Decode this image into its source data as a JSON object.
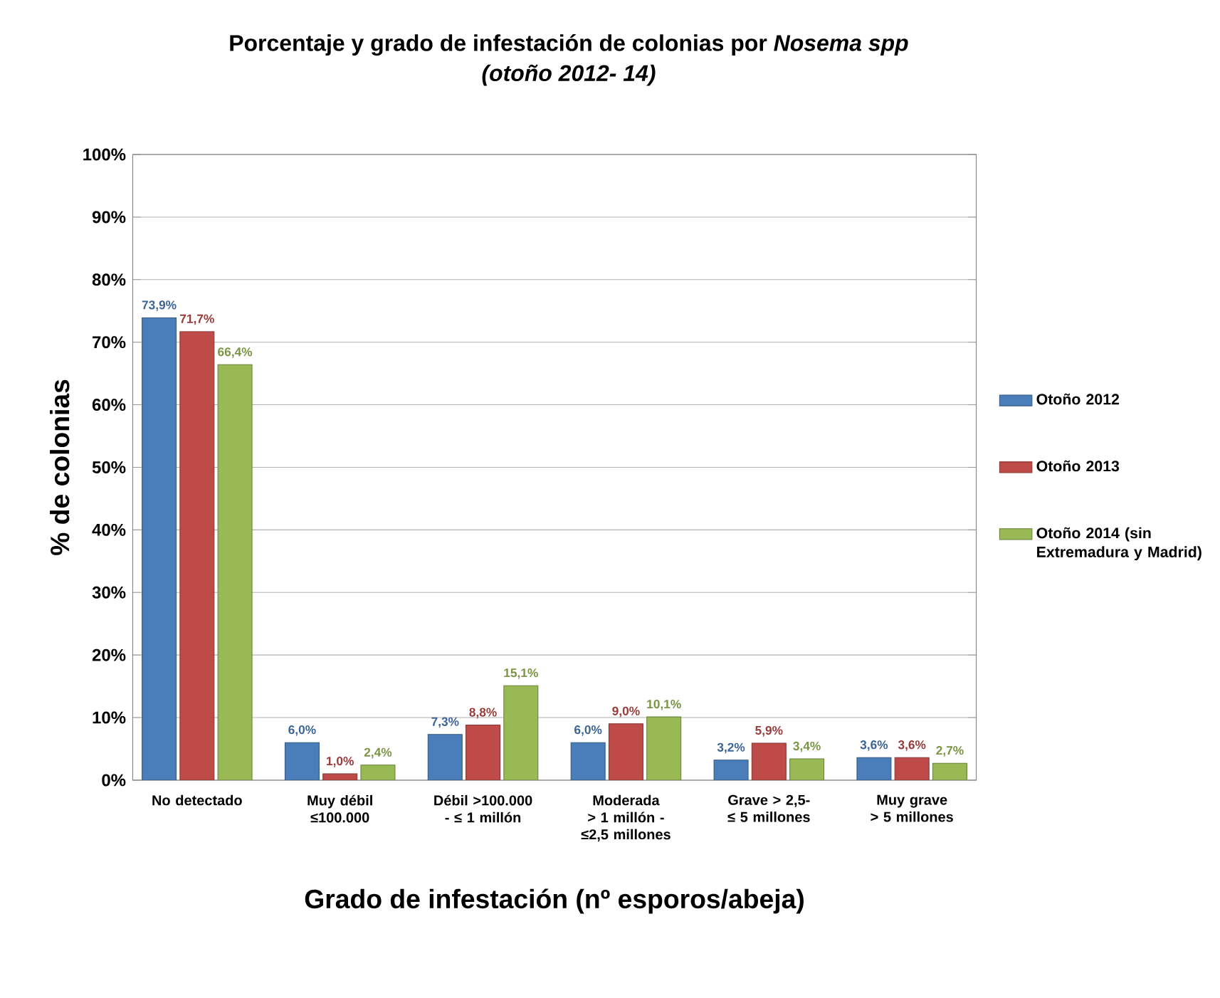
{
  "chart_data": {
    "type": "bar",
    "title": "Porcentaje y grado de infestación de colonias por *Nosema spp*",
    "subtitle": "(otoño 2012- 14)",
    "xlabel": "Grado de infestación (nº esporos/abeja)",
    "ylabel": "% de colonias",
    "categories": [
      "No detectado",
      "Muy débil ≤100.000",
      "Débil >100.000 - ≤ 1 millón",
      "Moderada > 1 millón - ≤2,5 millones",
      "Grave > 2,5- ≤ 5 millones",
      "Muy grave > 5 millones"
    ],
    "series": [
      {
        "name": "Otoño 2012",
        "color": "#4a7ebb",
        "values": [
          73.9,
          6.0,
          7.3,
          6.0,
          3.2,
          3.6
        ],
        "value_labels": [
          "73,9%",
          "6,0%",
          "7,3%",
          "6,0%",
          "3,2%",
          "3,6%"
        ]
      },
      {
        "name": "Otoño 2013",
        "color": "#be4b48",
        "values": [
          71.7,
          1.0,
          8.8,
          9.0,
          5.9,
          3.6
        ],
        "value_labels": [
          "71,7%",
          "1,0%",
          "8,8%",
          "9,0%",
          "5,9%",
          "3,6%"
        ]
      },
      {
        "name": "Otoño 2014 (sin Extremadura y Madrid)",
        "color": "#98b954",
        "values": [
          66.4,
          2.4,
          15.1,
          10.1,
          3.4,
          2.7
        ],
        "value_labels": [
          "66,4%",
          "2,4%",
          "15,1%",
          "10,1%",
          "3,4%",
          "2,7%"
        ]
      }
    ],
    "ylim": [
      0,
      100
    ],
    "yticks": [
      {
        "value": 0,
        "label": "0%"
      },
      {
        "value": 10,
        "label": "10%"
      },
      {
        "value": 20,
        "label": "20%"
      },
      {
        "value": 30,
        "label": "30%"
      },
      {
        "value": 40,
        "label": "40%"
      },
      {
        "value": 50,
        "label": "50%"
      },
      {
        "value": 60,
        "label": "60%"
      },
      {
        "value": 70,
        "label": "70%"
      },
      {
        "value": 80,
        "label": "80%"
      },
      {
        "value": 90,
        "label": "90%"
      },
      {
        "value": 100,
        "label": "100%"
      }
    ],
    "grid": "y",
    "legend": "right"
  }
}
